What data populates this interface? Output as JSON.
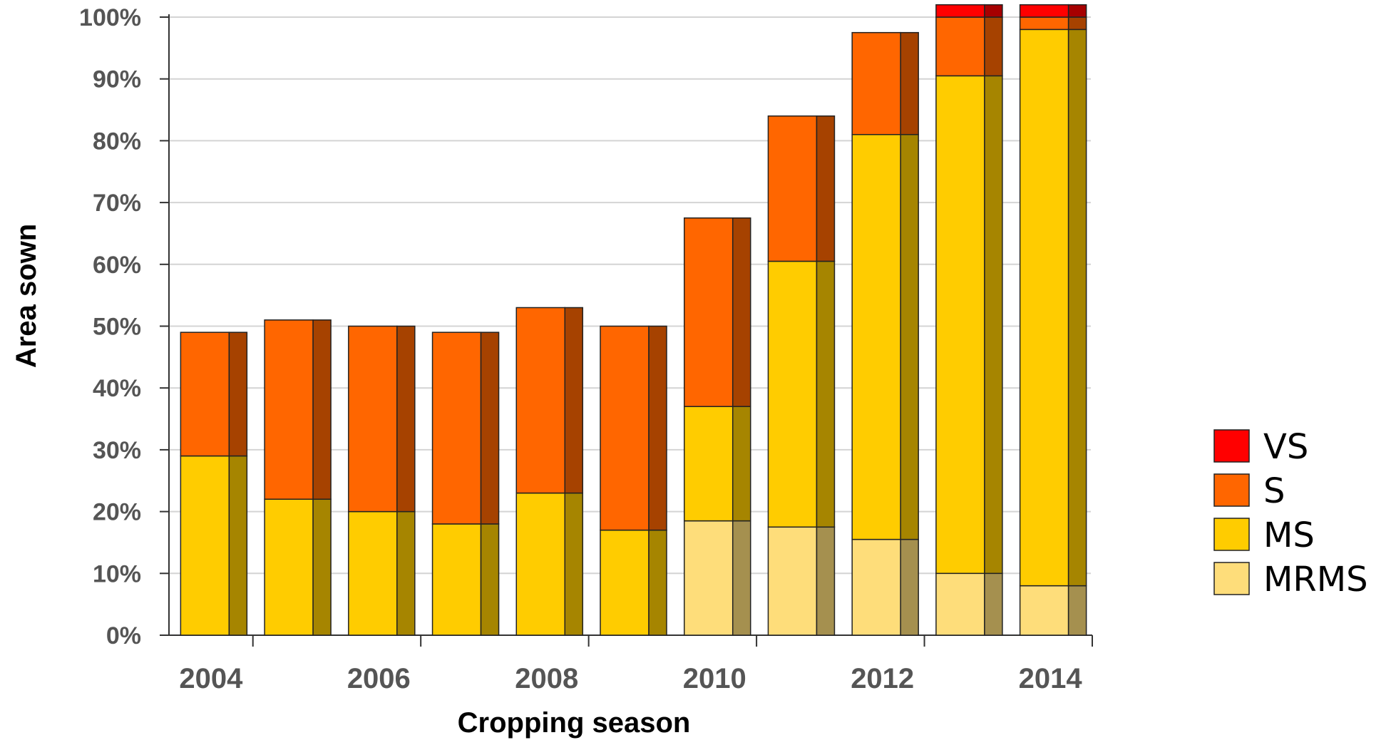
{
  "chart_data": {
    "type": "bar",
    "stacked": true,
    "style": "3d",
    "categories": [
      "2004",
      "2005",
      "2006",
      "2007",
      "2008",
      "2009",
      "2010",
      "2011",
      "2012",
      "2013",
      "2014"
    ],
    "x_tick_labels": [
      "2004",
      "2006",
      "2008",
      "2010",
      "2012",
      "2014"
    ],
    "series": [
      {
        "name": "MRMS",
        "color": "#FEDD7A",
        "values": [
          0,
          0,
          0,
          0,
          0,
          0,
          18.5,
          17.5,
          15.5,
          10,
          8
        ]
      },
      {
        "name": "MS",
        "color": "#FFCC00",
        "values": [
          29,
          22,
          20,
          18,
          23,
          17,
          18.5,
          43,
          65.5,
          80.5,
          90
        ]
      },
      {
        "name": "S",
        "color": "#FF6600",
        "values": [
          20,
          29,
          30,
          31,
          30,
          33,
          30.5,
          23.5,
          16.5,
          9.5,
          2
        ]
      },
      {
        "name": "VS",
        "color": "#FF0000",
        "values": [
          0,
          0,
          0,
          0,
          0,
          0,
          0,
          0,
          0,
          2,
          2
        ]
      }
    ],
    "y_ticks": [
      "0%",
      "10%",
      "20%",
      "30%",
      "40%",
      "50%",
      "60%",
      "70%",
      "80%",
      "90%",
      "100%"
    ],
    "ylim": [
      0,
      100
    ],
    "xlabel": "Cropping season",
    "ylabel": "Area sown",
    "grid": true,
    "legend": {
      "position": "right",
      "order": [
        "VS",
        "S",
        "MS",
        "MRMS"
      ]
    }
  }
}
